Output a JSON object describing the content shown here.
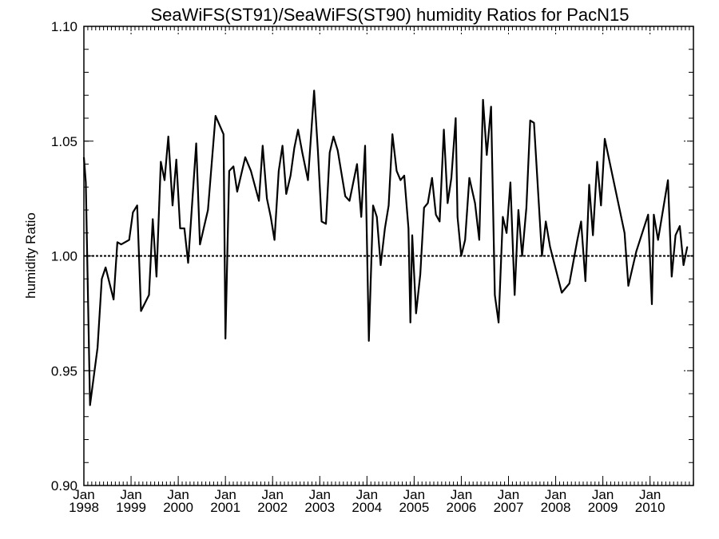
{
  "chart_data": {
    "type": "line",
    "title": "SeaWiFS(ST91)/SeaWiFS(ST90)  humidity Ratios for PacN15",
    "xlabel": "",
    "ylabel": "humidity Ratio",
    "xlim": [
      1998.0,
      2010.92
    ],
    "ylim": [
      0.9,
      1.1
    ],
    "yticks": [
      "1.10",
      "1.05",
      "1.00",
      "0.95",
      "0.90"
    ],
    "xticks": [
      {
        "month": "Jan",
        "year": "1998",
        "x": 1998.0
      },
      {
        "month": "Jan",
        "year": "1999",
        "x": 1999.0
      },
      {
        "month": "Jan",
        "year": "2000",
        "x": 2000.0
      },
      {
        "month": "Jan",
        "year": "2001",
        "x": 2001.0
      },
      {
        "month": "Jan",
        "year": "2002",
        "x": 2002.0
      },
      {
        "month": "Jan",
        "year": "2003",
        "x": 2003.0
      },
      {
        "month": "Jan",
        "year": "2004",
        "x": 2004.0
      },
      {
        "month": "Jan",
        "year": "2005",
        "x": 2005.0
      },
      {
        "month": "Jan",
        "year": "2006",
        "x": 2006.0
      },
      {
        "month": "Jan",
        "year": "2007",
        "x": 2007.0
      },
      {
        "month": "Jan",
        "year": "2008",
        "x": 2008.0
      },
      {
        "month": "Jan",
        "year": "2009",
        "x": 2009.0
      },
      {
        "month": "Jan",
        "year": "2010",
        "x": 2010.0
      }
    ],
    "reference_line": 1.0,
    "grid": false,
    "series": [
      {
        "points": [
          [
            1997.96,
            1.043
          ],
          [
            1998.04,
            1.032
          ],
          [
            1998.13,
            0.935
          ],
          [
            1998.29,
            0.96
          ],
          [
            1998.38,
            0.99
          ],
          [
            1998.46,
            0.995
          ],
          [
            1998.63,
            0.981
          ],
          [
            1998.71,
            1.006
          ],
          [
            1998.79,
            1.005
          ],
          [
            1998.96,
            1.007
          ],
          [
            1999.04,
            1.019
          ],
          [
            1999.13,
            1.022
          ],
          [
            1999.21,
            0.976
          ],
          [
            1999.38,
            0.983
          ],
          [
            1999.46,
            1.016
          ],
          [
            1999.54,
            0.991
          ],
          [
            1999.63,
            1.041
          ],
          [
            1999.71,
            1.033
          ],
          [
            1999.79,
            1.052
          ],
          [
            1999.88,
            1.022
          ],
          [
            1999.96,
            1.042
          ],
          [
            2000.04,
            1.012
          ],
          [
            2000.13,
            1.012
          ],
          [
            2000.21,
            0.997
          ],
          [
            2000.38,
            1.049
          ],
          [
            2000.46,
            1.005
          ],
          [
            2000.63,
            1.02
          ],
          [
            2000.79,
            1.061
          ],
          [
            2000.96,
            1.053
          ],
          [
            2001.0,
            0.964
          ],
          [
            2001.08,
            1.037
          ],
          [
            2001.17,
            1.039
          ],
          [
            2001.25,
            1.028
          ],
          [
            2001.42,
            1.043
          ],
          [
            2001.54,
            1.037
          ],
          [
            2001.71,
            1.024
          ],
          [
            2001.79,
            1.048
          ],
          [
            2001.88,
            1.025
          ],
          [
            2001.96,
            1.017
          ],
          [
            2002.04,
            1.007
          ],
          [
            2002.13,
            1.037
          ],
          [
            2002.21,
            1.048
          ],
          [
            2002.29,
            1.027
          ],
          [
            2002.38,
            1.035
          ],
          [
            2002.46,
            1.047
          ],
          [
            2002.54,
            1.055
          ],
          [
            2002.63,
            1.045
          ],
          [
            2002.75,
            1.033
          ],
          [
            2002.88,
            1.072
          ],
          [
            2002.96,
            1.046
          ],
          [
            2003.04,
            1.015
          ],
          [
            2003.13,
            1.014
          ],
          [
            2003.21,
            1.045
          ],
          [
            2003.29,
            1.052
          ],
          [
            2003.38,
            1.046
          ],
          [
            2003.54,
            1.026
          ],
          [
            2003.63,
            1.024
          ],
          [
            2003.79,
            1.04
          ],
          [
            2003.88,
            1.017
          ],
          [
            2003.96,
            1.048
          ],
          [
            2004.04,
            0.963
          ],
          [
            2004.13,
            1.022
          ],
          [
            2004.21,
            1.017
          ],
          [
            2004.29,
            0.996
          ],
          [
            2004.38,
            1.012
          ],
          [
            2004.46,
            1.022
          ],
          [
            2004.54,
            1.053
          ],
          [
            2004.63,
            1.037
          ],
          [
            2004.71,
            1.033
          ],
          [
            2004.79,
            1.035
          ],
          [
            2004.88,
            1.012
          ],
          [
            2004.92,
            0.971
          ],
          [
            2004.96,
            1.009
          ],
          [
            2005.04,
            0.975
          ],
          [
            2005.13,
            0.992
          ],
          [
            2005.21,
            1.021
          ],
          [
            2005.29,
            1.023
          ],
          [
            2005.38,
            1.034
          ],
          [
            2005.46,
            1.018
          ],
          [
            2005.54,
            1.015
          ],
          [
            2005.63,
            1.055
          ],
          [
            2005.71,
            1.023
          ],
          [
            2005.79,
            1.034
          ],
          [
            2005.88,
            1.06
          ],
          [
            2005.92,
            1.017
          ],
          [
            2006.0,
            1.0
          ],
          [
            2006.08,
            1.007
          ],
          [
            2006.17,
            1.034
          ],
          [
            2006.29,
            1.023
          ],
          [
            2006.38,
            1.007
          ],
          [
            2006.46,
            1.068
          ],
          [
            2006.54,
            1.044
          ],
          [
            2006.63,
            1.065
          ],
          [
            2006.71,
            0.983
          ],
          [
            2006.79,
            0.971
          ],
          [
            2006.88,
            1.017
          ],
          [
            2006.96,
            1.01
          ],
          [
            2007.04,
            1.032
          ],
          [
            2007.13,
            0.983
          ],
          [
            2007.21,
            1.02
          ],
          [
            2007.29,
            1.0
          ],
          [
            2007.38,
            1.021
          ],
          [
            2007.46,
            1.059
          ],
          [
            2007.54,
            1.058
          ],
          [
            2007.71,
            1.0
          ],
          [
            2007.79,
            1.015
          ],
          [
            2007.88,
            1.004
          ],
          [
            2008.13,
            0.984
          ],
          [
            2008.29,
            0.988
          ],
          [
            2008.46,
            1.007
          ],
          [
            2008.54,
            1.015
          ],
          [
            2008.63,
            0.989
          ],
          [
            2008.71,
            1.031
          ],
          [
            2008.79,
            1.009
          ],
          [
            2008.88,
            1.041
          ],
          [
            2008.96,
            1.022
          ],
          [
            2009.04,
            1.051
          ],
          [
            2009.46,
            1.01
          ],
          [
            2009.54,
            0.987
          ],
          [
            2009.71,
            1.002
          ],
          [
            2009.96,
            1.018
          ],
          [
            2010.04,
            0.979
          ],
          [
            2010.08,
            1.018
          ],
          [
            2010.17,
            1.007
          ],
          [
            2010.38,
            1.033
          ],
          [
            2010.46,
            0.991
          ],
          [
            2010.54,
            1.009
          ],
          [
            2010.63,
            1.013
          ],
          [
            2010.71,
            0.996
          ],
          [
            2010.79,
            1.004
          ]
        ]
      }
    ]
  }
}
